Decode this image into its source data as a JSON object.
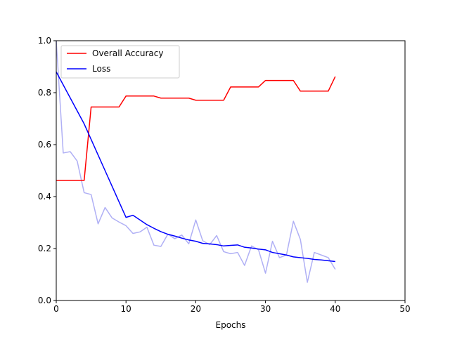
{
  "chart_data": {
    "type": "line",
    "title": "",
    "xlabel": "Epochs",
    "ylabel": "",
    "xlim": [
      0,
      50
    ],
    "ylim": [
      0,
      1.0
    ],
    "xticks": [
      0,
      10,
      20,
      30,
      40,
      50
    ],
    "yticks": [
      0.0,
      0.2,
      0.4,
      0.6,
      0.8,
      1.0
    ],
    "xtick_labels": [
      "0",
      "10",
      "20",
      "30",
      "40",
      "50"
    ],
    "ytick_labels": [
      "0.0",
      "0.2",
      "0.4",
      "0.6",
      "0.8",
      "1.0"
    ],
    "grid": false,
    "legend_position": "top-left",
    "series": [
      {
        "name": "Overall Accuracy",
        "color": "#ff0000",
        "x": [
          0,
          1,
          2,
          3,
          4,
          5,
          6,
          7,
          8,
          9,
          10,
          11,
          12,
          13,
          14,
          15,
          16,
          17,
          18,
          19,
          20,
          21,
          22,
          23,
          24,
          25,
          26,
          27,
          28,
          29,
          30,
          31,
          32,
          33,
          34,
          35,
          36,
          37,
          38,
          39,
          40
        ],
        "values": [
          0.462,
          0.462,
          0.462,
          0.462,
          0.462,
          0.745,
          0.745,
          0.745,
          0.745,
          0.745,
          0.787,
          0.787,
          0.787,
          0.787,
          0.787,
          0.779,
          0.779,
          0.779,
          0.779,
          0.779,
          0.771,
          0.771,
          0.771,
          0.771,
          0.771,
          0.822,
          0.822,
          0.822,
          0.822,
          0.822,
          0.847,
          0.847,
          0.847,
          0.847,
          0.847,
          0.806,
          0.806,
          0.806,
          0.806,
          0.806,
          0.862
        ]
      },
      {
        "name": "Loss",
        "color": "#0000ff",
        "x": [
          0,
          1,
          2,
          3,
          4,
          5,
          6,
          7,
          8,
          9,
          10,
          11,
          12,
          13,
          14,
          15,
          16,
          17,
          18,
          19,
          20,
          21,
          22,
          23,
          24,
          25,
          26,
          27,
          28,
          29,
          30,
          31,
          32,
          33,
          34,
          35,
          36,
          37,
          38,
          39,
          40
        ],
        "values": [
          0.88,
          0.83,
          0.78,
          0.73,
          0.68,
          0.62,
          0.56,
          0.5,
          0.44,
          0.38,
          0.32,
          0.328,
          0.31,
          0.292,
          0.278,
          0.265,
          0.255,
          0.248,
          0.24,
          0.233,
          0.228,
          0.22,
          0.218,
          0.215,
          0.21,
          0.212,
          0.214,
          0.205,
          0.202,
          0.198,
          0.195,
          0.185,
          0.18,
          0.175,
          0.168,
          0.165,
          0.162,
          0.158,
          0.156,
          0.153,
          0.15
        ]
      },
      {
        "name": "",
        "color": "#b0b0f5",
        "x": [
          0,
          1,
          2,
          3,
          4,
          5,
          6,
          7,
          8,
          9,
          10,
          11,
          12,
          13,
          14,
          15,
          16,
          17,
          18,
          19,
          20,
          21,
          22,
          23,
          24,
          25,
          26,
          27,
          28,
          29,
          30,
          31,
          32,
          33,
          34,
          35,
          36,
          37,
          38,
          39,
          40
        ],
        "values": [
          1.0,
          0.568,
          0.573,
          0.537,
          0.415,
          0.408,
          0.295,
          0.358,
          0.318,
          0.302,
          0.288,
          0.258,
          0.264,
          0.282,
          0.213,
          0.208,
          0.255,
          0.238,
          0.252,
          0.218,
          0.31,
          0.23,
          0.215,
          0.25,
          0.188,
          0.18,
          0.185,
          0.135,
          0.21,
          0.195,
          0.105,
          0.228,
          0.165,
          0.175,
          0.305,
          0.235,
          0.07,
          0.185,
          0.175,
          0.165,
          0.12
        ]
      }
    ]
  }
}
